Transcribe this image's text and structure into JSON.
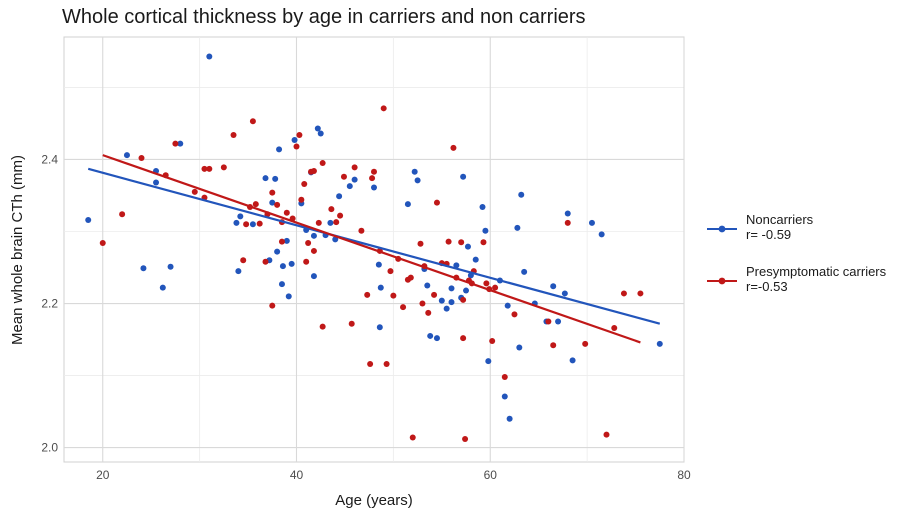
{
  "chart_data": {
    "type": "scatter",
    "title": "Whole cortical thickness by age in carriers and non carriers",
    "xlabel": "Age (years)",
    "ylabel": "Mean whole brain CTh (mm)",
    "xlim": [
      16,
      80
    ],
    "ylim": [
      1.98,
      2.57
    ],
    "xticks": [
      20,
      40,
      60,
      80
    ],
    "yticks": [
      2.0,
      2.2,
      2.4
    ],
    "grid": true,
    "legend_position": "right",
    "series": [
      {
        "label_line1": "Noncarriers",
        "label_line2": "r= -0.59",
        "color": "#2255bb",
        "fit": {
          "x": [
            18.5,
            77.5
          ],
          "y": [
            2.387,
            2.172
          ]
        },
        "points": [
          [
            18.5,
            2.316
          ],
          [
            22.5,
            2.406
          ],
          [
            24.2,
            2.249
          ],
          [
            25.5,
            2.384
          ],
          [
            25.5,
            2.368
          ],
          [
            26.2,
            2.222
          ],
          [
            27,
            2.251
          ],
          [
            28,
            2.422
          ],
          [
            31,
            2.543
          ],
          [
            33.8,
            2.312
          ],
          [
            34.2,
            2.321
          ],
          [
            34,
            2.245
          ],
          [
            35.5,
            2.31
          ],
          [
            36.8,
            2.374
          ],
          [
            37.2,
            2.26
          ],
          [
            37.5,
            2.34
          ],
          [
            37.8,
            2.373
          ],
          [
            38,
            2.272
          ],
          [
            38.2,
            2.414
          ],
          [
            38.5,
            2.227
          ],
          [
            38.6,
            2.252
          ],
          [
            39,
            2.287
          ],
          [
            39.2,
            2.21
          ],
          [
            39.5,
            2.255
          ],
          [
            39.8,
            2.427
          ],
          [
            40.5,
            2.339
          ],
          [
            41,
            2.302
          ],
          [
            41.5,
            2.382
          ],
          [
            41.8,
            2.294
          ],
          [
            41.8,
            2.238
          ],
          [
            42.2,
            2.443
          ],
          [
            42.5,
            2.436
          ],
          [
            43,
            2.295
          ],
          [
            43.5,
            2.312
          ],
          [
            44,
            2.289
          ],
          [
            44.4,
            2.349
          ],
          [
            45.5,
            2.363
          ],
          [
            46,
            2.372
          ],
          [
            48,
            2.361
          ],
          [
            48.5,
            2.254
          ],
          [
            48.7,
            2.222
          ],
          [
            48.6,
            2.167
          ],
          [
            51.5,
            2.338
          ],
          [
            52.2,
            2.383
          ],
          [
            52.5,
            2.371
          ],
          [
            53.2,
            2.248
          ],
          [
            53.5,
            2.225
          ],
          [
            53.8,
            2.155
          ],
          [
            54.5,
            2.152
          ],
          [
            55,
            2.204
          ],
          [
            55.5,
            2.193
          ],
          [
            56,
            2.221
          ],
          [
            56,
            2.202
          ],
          [
            56.5,
            2.253
          ],
          [
            57,
            2.208
          ],
          [
            57.2,
            2.376
          ],
          [
            57.5,
            2.218
          ],
          [
            57.7,
            2.279
          ],
          [
            58,
            2.239
          ],
          [
            58.5,
            2.261
          ],
          [
            59.2,
            2.334
          ],
          [
            59.5,
            2.301
          ],
          [
            59.8,
            2.12
          ],
          [
            61,
            2.232
          ],
          [
            61.5,
            2.071
          ],
          [
            61.8,
            2.197
          ],
          [
            62,
            2.04
          ],
          [
            62.8,
            2.305
          ],
          [
            63,
            2.139
          ],
          [
            63.2,
            2.351
          ],
          [
            63.5,
            2.244
          ],
          [
            64.6,
            2.2
          ],
          [
            65.8,
            2.175
          ],
          [
            66.5,
            2.224
          ],
          [
            67,
            2.175
          ],
          [
            67.7,
            2.214
          ],
          [
            68,
            2.325
          ],
          [
            68.5,
            2.121
          ],
          [
            70.5,
            2.312
          ],
          [
            71.5,
            2.296
          ],
          [
            77.5,
            2.144
          ]
        ]
      },
      {
        "label_line1": "Presymptomatic carriers",
        "label_line2": "r=-0.53",
        "color": "#c01818",
        "fit": {
          "x": [
            20,
            75.5
          ],
          "y": [
            2.406,
            2.146
          ]
        },
        "points": [
          [
            20,
            2.284
          ],
          [
            22,
            2.324
          ],
          [
            24,
            2.402
          ],
          [
            26.5,
            2.378
          ],
          [
            27.5,
            2.422
          ],
          [
            29.5,
            2.355
          ],
          [
            30.5,
            2.347
          ],
          [
            30.5,
            2.387
          ],
          [
            31,
            2.387
          ],
          [
            32.5,
            2.389
          ],
          [
            33.5,
            2.434
          ],
          [
            34.5,
            2.26
          ],
          [
            34.8,
            2.31
          ],
          [
            35.2,
            2.334
          ],
          [
            35.5,
            2.453
          ],
          [
            35.8,
            2.338
          ],
          [
            36.2,
            2.311
          ],
          [
            36.8,
            2.258
          ],
          [
            37,
            2.324
          ],
          [
            37.5,
            2.197
          ],
          [
            37.5,
            2.354
          ],
          [
            38,
            2.337
          ],
          [
            38.5,
            2.313
          ],
          [
            38.5,
            2.286
          ],
          [
            39,
            2.326
          ],
          [
            39.6,
            2.318
          ],
          [
            40,
            2.418
          ],
          [
            40.3,
            2.434
          ],
          [
            40.5,
            2.344
          ],
          [
            40.8,
            2.366
          ],
          [
            41,
            2.258
          ],
          [
            41.2,
            2.284
          ],
          [
            41.5,
            2.383
          ],
          [
            41.8,
            2.384
          ],
          [
            41.8,
            2.273
          ],
          [
            42.3,
            2.312
          ],
          [
            42.7,
            2.395
          ],
          [
            42.7,
            2.168
          ],
          [
            43.6,
            2.331
          ],
          [
            44.1,
            2.313
          ],
          [
            44.5,
            2.322
          ],
          [
            44.9,
            2.376
          ],
          [
            45.7,
            2.172
          ],
          [
            46,
            2.389
          ],
          [
            46.7,
            2.301
          ],
          [
            47.3,
            2.212
          ],
          [
            47.6,
            2.116
          ],
          [
            47.8,
            2.374
          ],
          [
            48,
            2.383
          ],
          [
            48.6,
            2.273
          ],
          [
            49,
            2.471
          ],
          [
            49.3,
            2.116
          ],
          [
            49.7,
            2.245
          ],
          [
            50,
            2.211
          ],
          [
            50.5,
            2.262
          ],
          [
            51,
            2.195
          ],
          [
            51.5,
            2.233
          ],
          [
            51.8,
            2.236
          ],
          [
            52,
            2.014
          ],
          [
            52.8,
            2.283
          ],
          [
            53,
            2.2
          ],
          [
            53.2,
            2.252
          ],
          [
            53.6,
            2.187
          ],
          [
            54.2,
            2.212
          ],
          [
            54.5,
            2.34
          ],
          [
            55,
            2.256
          ],
          [
            55.5,
            2.255
          ],
          [
            55.7,
            2.286
          ],
          [
            56.2,
            2.416
          ],
          [
            56.5,
            2.236
          ],
          [
            57,
            2.285
          ],
          [
            57.2,
            2.205
          ],
          [
            57.2,
            2.152
          ],
          [
            57.4,
            2.012
          ],
          [
            57.8,
            2.232
          ],
          [
            58.1,
            2.228
          ],
          [
            58.3,
            2.245
          ],
          [
            59.3,
            2.285
          ],
          [
            59.6,
            2.228
          ],
          [
            59.9,
            2.22
          ],
          [
            60.2,
            2.148
          ],
          [
            60.5,
            2.222
          ],
          [
            61.5,
            2.098
          ],
          [
            62.5,
            2.185
          ],
          [
            66,
            2.175
          ],
          [
            66.5,
            2.142
          ],
          [
            68,
            2.312
          ],
          [
            69.8,
            2.144
          ],
          [
            72,
            2.018
          ],
          [
            72.8,
            2.166
          ],
          [
            73.8,
            2.214
          ],
          [
            75.5,
            2.214
          ]
        ]
      }
    ]
  }
}
